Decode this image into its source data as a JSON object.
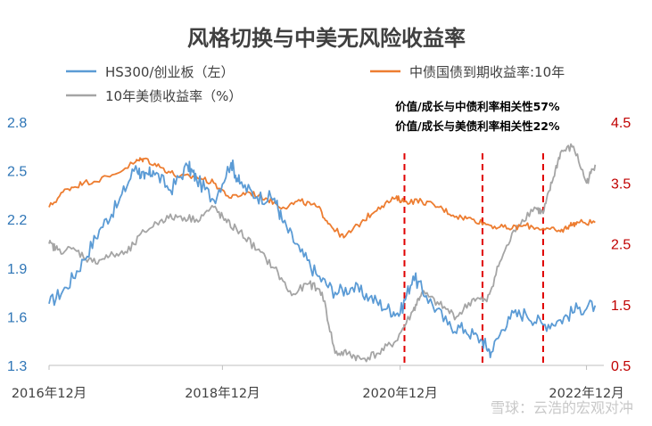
{
  "chart_data": {
    "type": "line",
    "title": "风格切换与中美无风险收益率",
    "x_tick_labels": [
      "2016年12月",
      "2018年12月",
      "2020年12月",
      "2022年12月"
    ],
    "y_left": {
      "ticks": [
        "1.3",
        "1.6",
        "1.9",
        "2.2",
        "2.5",
        "2.8"
      ],
      "range": [
        1.3,
        2.8
      ],
      "color": "#2e75b6"
    },
    "y_right": {
      "ticks": [
        "0.5",
        "1.5",
        "2.5",
        "3.5",
        "4.5"
      ],
      "range": [
        0.5,
        4.5
      ],
      "color": "#c00000"
    },
    "series": [
      {
        "name": "HS300/创业板（左）",
        "axis": "left",
        "color": "#5b9bd5",
        "t": [
          2016.9,
          2017.1,
          2017.3,
          2017.5,
          2017.7,
          2017.9,
          2018.0,
          2018.1,
          2018.3,
          2018.5,
          2018.6,
          2018.8,
          2019.0,
          2019.1,
          2019.3,
          2019.5,
          2019.6,
          2019.8,
          2020.0,
          2020.2,
          2020.4,
          2020.6,
          2020.8,
          2020.95,
          2021.1,
          2021.25,
          2021.5,
          2021.7,
          2021.9,
          2022.0,
          2022.2,
          2022.4,
          2022.6,
          2022.8,
          2023.0,
          2023.2
        ],
        "v": [
          1.68,
          1.78,
          1.95,
          2.15,
          2.3,
          2.53,
          2.45,
          2.5,
          2.38,
          2.53,
          2.45,
          2.32,
          2.55,
          2.42,
          2.34,
          2.33,
          2.18,
          2.0,
          1.85,
          1.75,
          1.78,
          1.72,
          1.65,
          1.62,
          1.85,
          1.73,
          1.55,
          1.52,
          1.45,
          1.38,
          1.6,
          1.62,
          1.55,
          1.58,
          1.65,
          1.67
        ]
      },
      {
        "name": "中债国债到期收益率:10年",
        "axis": "right",
        "color": "#ed7d31",
        "t": [
          2016.9,
          2017.1,
          2017.3,
          2017.6,
          2017.9,
          2018.0,
          2018.2,
          2018.4,
          2018.6,
          2018.8,
          2019.0,
          2019.2,
          2019.4,
          2019.6,
          2019.8,
          2020.0,
          2020.15,
          2020.3,
          2020.5,
          2020.7,
          2020.9,
          2021.0,
          2021.2,
          2021.4,
          2021.6,
          2021.8,
          2022.0,
          2022.2,
          2022.4,
          2022.6,
          2022.8,
          2022.9,
          2023.0,
          2023.2
        ],
        "v": [
          3.1,
          3.4,
          3.5,
          3.6,
          3.85,
          3.9,
          3.75,
          3.6,
          3.6,
          3.5,
          3.25,
          3.35,
          3.25,
          3.1,
          3.2,
          3.1,
          2.8,
          2.6,
          2.85,
          3.1,
          3.25,
          3.2,
          3.2,
          3.1,
          2.95,
          2.9,
          2.8,
          2.75,
          2.8,
          2.75,
          2.7,
          2.8,
          2.85,
          2.85
        ]
      },
      {
        "name": "10年美债收益率（%）",
        "axis": "right",
        "color": "#a5a5a5",
        "t": [
          2016.9,
          2017.0,
          2017.2,
          2017.4,
          2017.6,
          2017.8,
          2018.0,
          2018.2,
          2018.4,
          2018.6,
          2018.8,
          2018.95,
          2019.1,
          2019.3,
          2019.5,
          2019.7,
          2019.9,
          2020.05,
          2020.2,
          2020.35,
          2020.5,
          2020.7,
          2020.9,
          2021.1,
          2021.2,
          2021.4,
          2021.6,
          2021.8,
          2021.95,
          2022.1,
          2022.3,
          2022.5,
          2022.6,
          2022.7,
          2022.8,
          2022.95,
          2023.1,
          2023.2
        ],
        "v": [
          2.5,
          2.4,
          2.4,
          2.2,
          2.3,
          2.35,
          2.7,
          2.9,
          2.95,
          2.9,
          3.1,
          2.85,
          2.7,
          2.4,
          2.1,
          1.65,
          1.85,
          1.7,
          0.7,
          0.7,
          0.6,
          0.7,
          0.9,
          1.4,
          1.7,
          1.5,
          1.3,
          1.6,
          1.55,
          2.2,
          2.8,
          3.1,
          3.0,
          3.5,
          4.0,
          4.1,
          3.5,
          3.8
        ]
      }
    ],
    "vlines": [
      2021.0,
      2021.9,
      2022.6
    ],
    "vline_color": "#e00000",
    "annotations": [
      "价值/成长与中债利率相关性57%",
      "价值/成长与美债利率相关性22%"
    ],
    "watermark": "雪球：云浩的宏观对冲",
    "grid": false,
    "legend_position": "top"
  }
}
